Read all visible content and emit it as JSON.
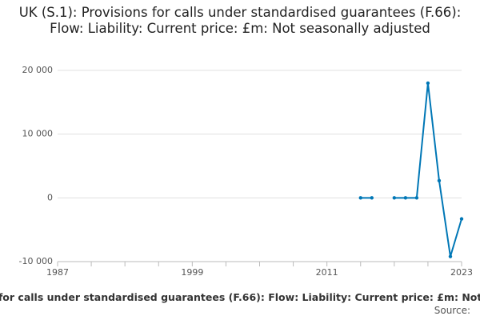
{
  "chart_data": {
    "type": "line",
    "title": "UK (S.1): Provisions for calls under standardised guarantees (F.66): Flow: Liability: Current price: £m: Not seasonally adjusted",
    "x": [
      2014,
      2015,
      2016,
      2017,
      2018,
      2019,
      2020,
      2021,
      2022,
      2023
    ],
    "series": [
      {
        "name": "UK (S.1): Provisions for calls under standardised guarantees (F.66): Flow: Liability: Current price: £m: Not seasonally adjusted",
        "color": "#0077b6",
        "values": [
          0,
          0,
          null,
          0,
          0,
          0,
          18000,
          2700,
          -9200,
          -3300
        ]
      }
    ],
    "xlim": [
      1987,
      2023
    ],
    "xticks": [
      1987,
      1999,
      2011,
      2023
    ],
    "ylim": [
      -10000,
      20000
    ],
    "yticks": [
      {
        "value": 20000,
        "label": "20 000"
      },
      {
        "value": 10000,
        "label": "10 000"
      },
      0,
      {
        "value": -10000,
        "label": "-10 000"
      }
    ],
    "grid": true,
    "source": "Source:"
  }
}
